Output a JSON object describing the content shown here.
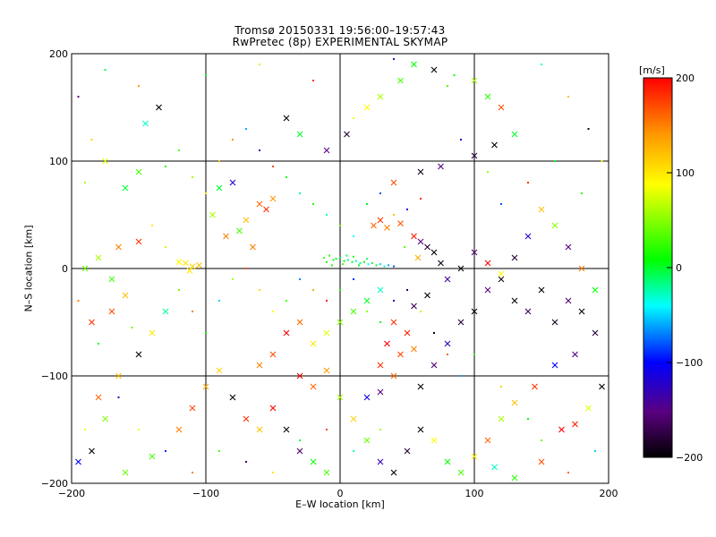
{
  "chart_data": {
    "type": "scatter",
    "title": "Tromsø 20150331 19:56:00–19:57:43",
    "subtitle": "RwPretec (8p) EXPERIMENTAL SKYMAP",
    "xlabel": "E–W location [km]",
    "ylabel": "N–S location [km]",
    "xlim": [
      -200,
      200
    ],
    "ylim": [
      -200,
      200
    ],
    "x_ticks": [
      -200,
      -100,
      0,
      100,
      200
    ],
    "y_ticks": [
      -200,
      -100,
      0,
      100,
      200
    ],
    "grid": true,
    "colorbar": {
      "label": "[m/s]",
      "range": [
        -200,
        200
      ],
      "ticks": [
        200,
        100,
        0,
        -100,
        -200
      ],
      "colormap": "black-purple-blue-cyan-green-yellow-orange-red"
    },
    "marker_types": [
      "x",
      "dot"
    ],
    "points": [
      [
        -5,
        8,
        0,
        "dot"
      ],
      [
        -3,
        9,
        5,
        "dot"
      ],
      [
        0,
        10,
        -10,
        "dot"
      ],
      [
        3,
        7,
        10,
        "dot"
      ],
      [
        6,
        8,
        -20,
        "dot"
      ],
      [
        9,
        6,
        0,
        "dot"
      ],
      [
        12,
        7,
        -30,
        "dot"
      ],
      [
        15,
        5,
        -20,
        "dot"
      ],
      [
        18,
        6,
        10,
        "dot"
      ],
      [
        21,
        4,
        -40,
        "dot"
      ],
      [
        24,
        5,
        -10,
        "dot"
      ],
      [
        27,
        3,
        0,
        "dot"
      ],
      [
        30,
        4,
        -50,
        "dot"
      ],
      [
        33,
        2,
        -30,
        "dot"
      ],
      [
        -8,
        12,
        20,
        "dot"
      ],
      [
        -10,
        6,
        10,
        "dot"
      ],
      [
        5,
        12,
        -5,
        "dot"
      ],
      [
        10,
        11,
        15,
        "dot"
      ],
      [
        20,
        9,
        -15,
        "dot"
      ],
      [
        -12,
        10,
        30,
        "dot"
      ],
      [
        36,
        3,
        -60,
        "dot"
      ],
      [
        40,
        2,
        -80,
        "dot"
      ],
      [
        14,
        3,
        5,
        "dot"
      ],
      [
        2,
        4,
        25,
        "dot"
      ],
      [
        -6,
        3,
        15,
        "dot"
      ],
      [
        25,
        40,
        160,
        "x"
      ],
      [
        30,
        45,
        180,
        "x"
      ],
      [
        35,
        38,
        150,
        "x"
      ],
      [
        45,
        42,
        170,
        "x"
      ],
      [
        55,
        30,
        190,
        "x"
      ],
      [
        60,
        25,
        -150,
        "x"
      ],
      [
        65,
        20,
        -180,
        "x"
      ],
      [
        70,
        15,
        -200,
        "x"
      ],
      [
        58,
        10,
        130,
        "x"
      ],
      [
        48,
        20,
        40,
        "dot"
      ],
      [
        -60,
        60,
        160,
        "x"
      ],
      [
        -55,
        55,
        180,
        "x"
      ],
      [
        -50,
        65,
        140,
        "x"
      ],
      [
        -70,
        45,
        120,
        "x"
      ],
      [
        -65,
        20,
        150,
        "x"
      ],
      [
        -115,
        5,
        100,
        "x"
      ],
      [
        -110,
        2,
        110,
        "x"
      ],
      [
        -120,
        6,
        90,
        "x"
      ],
      [
        -105,
        3,
        120,
        "x"
      ],
      [
        -112,
        -2,
        100,
        "x"
      ],
      [
        -175,
        100,
        80,
        "x"
      ],
      [
        -150,
        90,
        30,
        "x"
      ],
      [
        -160,
        75,
        0,
        "x"
      ],
      [
        -145,
        135,
        -30,
        "x"
      ],
      [
        -135,
        150,
        -200,
        "x"
      ],
      [
        -40,
        140,
        -200,
        "x"
      ],
      [
        -30,
        125,
        0,
        "x"
      ],
      [
        -10,
        110,
        -150,
        "x"
      ],
      [
        5,
        125,
        -180,
        "x"
      ],
      [
        10,
        140,
        80,
        "dot"
      ],
      [
        20,
        150,
        90,
        "x"
      ],
      [
        30,
        160,
        60,
        "x"
      ],
      [
        45,
        175,
        30,
        "x"
      ],
      [
        55,
        190,
        10,
        "x"
      ],
      [
        70,
        185,
        -200,
        "x"
      ],
      [
        85,
        180,
        10,
        "dot"
      ],
      [
        100,
        175,
        60,
        "x"
      ],
      [
        110,
        160,
        20,
        "x"
      ],
      [
        120,
        150,
        170,
        "x"
      ],
      [
        130,
        125,
        0,
        "x"
      ],
      [
        115,
        115,
        -200,
        "x"
      ],
      [
        100,
        105,
        -180,
        "x"
      ],
      [
        75,
        95,
        -150,
        "x"
      ],
      [
        60,
        90,
        -190,
        "x"
      ],
      [
        40,
        80,
        170,
        "x"
      ],
      [
        -80,
        80,
        -120,
        "x"
      ],
      [
        -90,
        75,
        0,
        "x"
      ],
      [
        -95,
        50,
        60,
        "x"
      ],
      [
        -85,
        30,
        150,
        "x"
      ],
      [
        -75,
        35,
        30,
        "x"
      ],
      [
        -150,
        25,
        180,
        "x"
      ],
      [
        -165,
        20,
        150,
        "x"
      ],
      [
        -180,
        10,
        60,
        "x"
      ],
      [
        -190,
        0,
        40,
        "x"
      ],
      [
        -170,
        -10,
        30,
        "x"
      ],
      [
        -160,
        -25,
        120,
        "x"
      ],
      [
        -170,
        -40,
        170,
        "x"
      ],
      [
        -185,
        -50,
        180,
        "x"
      ],
      [
        -140,
        -60,
        100,
        "x"
      ],
      [
        -130,
        -40,
        -20,
        "x"
      ],
      [
        -150,
        -80,
        -200,
        "x"
      ],
      [
        -165,
        -100,
        120,
        "x"
      ],
      [
        -180,
        -120,
        160,
        "x"
      ],
      [
        -175,
        -140,
        50,
        "x"
      ],
      [
        -185,
        -170,
        -200,
        "x"
      ],
      [
        -195,
        -180,
        -100,
        "x"
      ],
      [
        -160,
        -190,
        40,
        "x"
      ],
      [
        -140,
        -175,
        30,
        "x"
      ],
      [
        -120,
        -150,
        150,
        "x"
      ],
      [
        -110,
        -130,
        170,
        "x"
      ],
      [
        -100,
        -110,
        130,
        "x"
      ],
      [
        -90,
        -95,
        110,
        "x"
      ],
      [
        -80,
        -120,
        -200,
        "x"
      ],
      [
        -70,
        -140,
        180,
        "x"
      ],
      [
        -60,
        -150,
        120,
        "x"
      ],
      [
        -50,
        -130,
        200,
        "x"
      ],
      [
        -40,
        -150,
        -200,
        "x"
      ],
      [
        -30,
        -170,
        -160,
        "x"
      ],
      [
        -20,
        -180,
        10,
        "x"
      ],
      [
        -10,
        -190,
        30,
        "x"
      ],
      [
        -60,
        -90,
        150,
        "x"
      ],
      [
        -50,
        -80,
        170,
        "x"
      ],
      [
        -40,
        -60,
        200,
        "x"
      ],
      [
        -30,
        -50,
        160,
        "x"
      ],
      [
        -20,
        -70,
        100,
        "x"
      ],
      [
        -10,
        -60,
        80,
        "x"
      ],
      [
        0,
        -50,
        50,
        "x"
      ],
      [
        10,
        -40,
        30,
        "x"
      ],
      [
        20,
        -30,
        0,
        "x"
      ],
      [
        30,
        -20,
        -30,
        "x"
      ],
      [
        40,
        -50,
        180,
        "x"
      ],
      [
        50,
        -60,
        190,
        "x"
      ],
      [
        35,
        -70,
        200,
        "x"
      ],
      [
        45,
        -80,
        170,
        "x"
      ],
      [
        55,
        -75,
        150,
        "x"
      ],
      [
        30,
        -90,
        180,
        "x"
      ],
      [
        40,
        -100,
        160,
        "x"
      ],
      [
        60,
        -110,
        -200,
        "x"
      ],
      [
        70,
        -90,
        -160,
        "x"
      ],
      [
        80,
        -70,
        -130,
        "x"
      ],
      [
        90,
        -50,
        -180,
        "x"
      ],
      [
        100,
        -40,
        -200,
        "x"
      ],
      [
        110,
        -20,
        -150,
        "x"
      ],
      [
        120,
        -10,
        -190,
        "x"
      ],
      [
        130,
        -30,
        -200,
        "x"
      ],
      [
        140,
        -40,
        -170,
        "x"
      ],
      [
        150,
        -20,
        -200,
        "x"
      ],
      [
        160,
        -50,
        -190,
        "x"
      ],
      [
        170,
        -30,
        -160,
        "x"
      ],
      [
        180,
        -40,
        -200,
        "x"
      ],
      [
        190,
        -60,
        -180,
        "x"
      ],
      [
        175,
        -80,
        -150,
        "x"
      ],
      [
        160,
        -90,
        -100,
        "x"
      ],
      [
        145,
        -110,
        180,
        "x"
      ],
      [
        130,
        -125,
        120,
        "x"
      ],
      [
        120,
        -140,
        60,
        "x"
      ],
      [
        110,
        -160,
        160,
        "x"
      ],
      [
        100,
        -175,
        100,
        "x"
      ],
      [
        115,
        -185,
        -30,
        "x"
      ],
      [
        130,
        -195,
        20,
        "x"
      ],
      [
        150,
        -180,
        170,
        "x"
      ],
      [
        165,
        -150,
        200,
        "x"
      ],
      [
        175,
        -145,
        190,
        "x"
      ],
      [
        185,
        -130,
        80,
        "x"
      ],
      [
        195,
        -110,
        -200,
        "x"
      ],
      [
        190,
        -20,
        10,
        "x"
      ],
      [
        180,
        0,
        150,
        "x"
      ],
      [
        170,
        20,
        -150,
        "x"
      ],
      [
        160,
        40,
        50,
        "x"
      ],
      [
        150,
        55,
        120,
        "x"
      ],
      [
        140,
        30,
        -120,
        "x"
      ],
      [
        130,
        10,
        -180,
        "x"
      ],
      [
        120,
        -5,
        90,
        "x"
      ],
      [
        110,
        5,
        200,
        "x"
      ],
      [
        100,
        15,
        -160,
        "x"
      ],
      [
        90,
        0,
        -200,
        "x"
      ],
      [
        80,
        -10,
        -140,
        "x"
      ],
      [
        75,
        5,
        -190,
        "x"
      ],
      [
        65,
        -25,
        -200,
        "x"
      ],
      [
        55,
        -35,
        -170,
        "x"
      ],
      [
        -30,
        -100,
        200,
        "x"
      ],
      [
        -20,
        -110,
        160,
        "x"
      ],
      [
        -10,
        -95,
        140,
        "x"
      ],
      [
        0,
        -120,
        60,
        "x"
      ],
      [
        10,
        -140,
        110,
        "x"
      ],
      [
        20,
        -160,
        40,
        "x"
      ],
      [
        30,
        -180,
        -130,
        "x"
      ],
      [
        40,
        -190,
        -200,
        "x"
      ],
      [
        50,
        -170,
        -180,
        "x"
      ],
      [
        60,
        -150,
        -200,
        "x"
      ],
      [
        70,
        -160,
        90,
        "x"
      ],
      [
        80,
        -180,
        10,
        "x"
      ],
      [
        90,
        -190,
        30,
        "x"
      ],
      [
        20,
        -120,
        -110,
        "x"
      ],
      [
        30,
        -115,
        -150,
        "x"
      ],
      [
        -130,
        95,
        0,
        "dot"
      ],
      [
        -120,
        110,
        30,
        "dot"
      ],
      [
        -110,
        85,
        60,
        "dot"
      ],
      [
        -100,
        70,
        90,
        "dot"
      ],
      [
        -90,
        100,
        120,
        "dot"
      ],
      [
        -80,
        120,
        140,
        "dot"
      ],
      [
        -70,
        130,
        -60,
        "dot"
      ],
      [
        -60,
        110,
        -120,
        "dot"
      ],
      [
        -50,
        95,
        170,
        "dot"
      ],
      [
        -40,
        85,
        10,
        "dot"
      ],
      [
        -30,
        70,
        -20,
        "dot"
      ],
      [
        -20,
        60,
        20,
        "dot"
      ],
      [
        -10,
        50,
        -30,
        "dot"
      ],
      [
        0,
        40,
        40,
        "dot"
      ],
      [
        10,
        30,
        -40,
        "dot"
      ],
      [
        20,
        60,
        0,
        "dot"
      ],
      [
        30,
        70,
        -80,
        "dot"
      ],
      [
        40,
        50,
        120,
        "dot"
      ],
      [
        50,
        55,
        -110,
        "dot"
      ],
      [
        60,
        65,
        180,
        "dot"
      ],
      [
        -140,
        40,
        100,
        "dot"
      ],
      [
        -130,
        20,
        70,
        "dot"
      ],
      [
        -120,
        -20,
        40,
        "dot"
      ],
      [
        -110,
        -40,
        150,
        "dot"
      ],
      [
        -100,
        -60,
        10,
        "dot"
      ],
      [
        -90,
        -30,
        -50,
        "dot"
      ],
      [
        -80,
        -10,
        60,
        "dot"
      ],
      [
        -70,
        0,
        170,
        "dot"
      ],
      [
        -60,
        -20,
        110,
        "dot"
      ],
      [
        -50,
        -40,
        90,
        "dot"
      ],
      [
        -40,
        -30,
        30,
        "dot"
      ],
      [
        -30,
        -10,
        -70,
        "dot"
      ],
      [
        -20,
        -20,
        130,
        "dot"
      ],
      [
        -10,
        -30,
        190,
        "dot"
      ],
      [
        0,
        -20,
        10,
        "dot"
      ],
      [
        10,
        -10,
        -90,
        "dot"
      ],
      [
        20,
        -40,
        50,
        "dot"
      ],
      [
        30,
        -50,
        0,
        "dot"
      ],
      [
        40,
        -30,
        -130,
        "dot"
      ],
      [
        50,
        -20,
        -170,
        "dot"
      ],
      [
        60,
        -40,
        70,
        "dot"
      ],
      [
        70,
        -60,
        -200,
        "dot"
      ],
      [
        80,
        -80,
        160,
        "dot"
      ],
      [
        90,
        -100,
        -60,
        "dot"
      ],
      [
        100,
        -80,
        20,
        "dot"
      ],
      [
        -190,
        80,
        60,
        "dot"
      ],
      [
        -185,
        120,
        110,
        "dot"
      ],
      [
        -195,
        160,
        -150,
        "dot"
      ],
      [
        -175,
        185,
        -10,
        "dot"
      ],
      [
        -150,
        170,
        140,
        "dot"
      ],
      [
        -100,
        180,
        0,
        "dot"
      ],
      [
        -60,
        190,
        70,
        "dot"
      ],
      [
        -20,
        175,
        180,
        "dot"
      ],
      [
        40,
        195,
        -140,
        "dot"
      ],
      [
        80,
        170,
        30,
        "dot"
      ],
      [
        150,
        190,
        -30,
        "dot"
      ],
      [
        170,
        160,
        120,
        "dot"
      ],
      [
        185,
        130,
        -190,
        "dot"
      ],
      [
        195,
        100,
        90,
        "dot"
      ],
      [
        180,
        70,
        20,
        "dot"
      ],
      [
        160,
        100,
        0,
        "dot"
      ],
      [
        140,
        80,
        180,
        "dot"
      ],
      [
        120,
        60,
        -80,
        "dot"
      ],
      [
        110,
        90,
        60,
        "dot"
      ],
      [
        90,
        120,
        -120,
        "dot"
      ],
      [
        150,
        -160,
        40,
        "dot"
      ],
      [
        170,
        -190,
        160,
        "dot"
      ],
      [
        190,
        -170,
        -50,
        "dot"
      ],
      [
        140,
        -140,
        10,
        "dot"
      ],
      [
        120,
        -110,
        110,
        "dot"
      ],
      [
        -150,
        -150,
        80,
        "dot"
      ],
      [
        -130,
        -170,
        -90,
        "dot"
      ],
      [
        -110,
        -190,
        150,
        "dot"
      ],
      [
        -90,
        -170,
        30,
        "dot"
      ],
      [
        -70,
        -180,
        -160,
        "dot"
      ],
      [
        -50,
        -190,
        100,
        "dot"
      ],
      [
        -30,
        -160,
        0,
        "dot"
      ],
      [
        -10,
        -150,
        170,
        "dot"
      ],
      [
        10,
        -170,
        -30,
        "dot"
      ],
      [
        30,
        -150,
        60,
        "dot"
      ],
      [
        -195,
        -30,
        150,
        "dot"
      ],
      [
        -180,
        -70,
        0,
        "dot"
      ],
      [
        -165,
        -120,
        -130,
        "dot"
      ],
      [
        -190,
        -150,
        90,
        "dot"
      ],
      [
        -155,
        -55,
        40,
        "dot"
      ]
    ]
  }
}
